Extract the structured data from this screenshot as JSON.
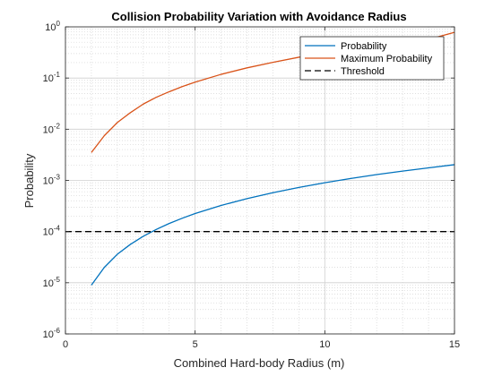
{
  "chart_data": {
    "type": "line",
    "title": "Collision Probability Variation with Avoidance Radius",
    "xlabel": "Combined Hard-body Radius (m)",
    "ylabel": "Probability",
    "xlim": [
      0,
      15
    ],
    "ylim": [
      1e-06,
      1
    ],
    "yscale": "log",
    "grid": true,
    "minor_grid": true,
    "legend_position": "top-right",
    "x_ticks": [
      0,
      5,
      10,
      15
    ],
    "x_tick_labels": [
      "0",
      "5",
      "10",
      "15"
    ],
    "y_ticks": [
      1e-06,
      1e-05,
      0.0001,
      0.001,
      0.01,
      0.1,
      1
    ],
    "y_tick_base": "10",
    "y_tick_exponents": [
      "-6",
      "-5",
      "-4",
      "-3",
      "-2",
      "-1",
      "0"
    ],
    "series": [
      {
        "name": "Probability",
        "color": "#0072BD",
        "dash": "solid",
        "x": [
          1,
          1.5,
          2,
          2.5,
          3,
          3.5,
          4,
          4.5,
          5,
          6,
          7,
          8,
          9,
          10,
          11,
          12,
          13,
          14,
          15
        ],
        "values": [
          9e-06,
          2e-05,
          3.6e-05,
          5.6e-05,
          8.1e-05,
          0.00011,
          0.000144,
          0.000182,
          0.000225,
          0.000324,
          0.000441,
          0.000576,
          0.000729,
          0.0009,
          0.00109,
          0.0013,
          0.00152,
          0.00176,
          0.00203
        ]
      },
      {
        "name": "Maximum Probability",
        "color": "#D95319",
        "dash": "solid",
        "x": [
          1,
          1.5,
          2,
          2.5,
          3,
          3.5,
          4,
          4.5,
          5,
          6,
          7,
          8,
          9,
          10,
          11,
          12,
          13,
          14,
          15
        ],
        "values": [
          0.0035,
          0.0075,
          0.0135,
          0.021,
          0.031,
          0.042,
          0.054,
          0.068,
          0.083,
          0.118,
          0.158,
          0.203,
          0.255,
          0.31,
          0.37,
          0.43,
          0.5,
          0.57,
          0.78
        ]
      },
      {
        "name": "Threshold",
        "color": "#000000",
        "dash": "dashed",
        "x": [
          0,
          15
        ],
        "values": [
          0.0001,
          0.0001
        ]
      }
    ]
  }
}
